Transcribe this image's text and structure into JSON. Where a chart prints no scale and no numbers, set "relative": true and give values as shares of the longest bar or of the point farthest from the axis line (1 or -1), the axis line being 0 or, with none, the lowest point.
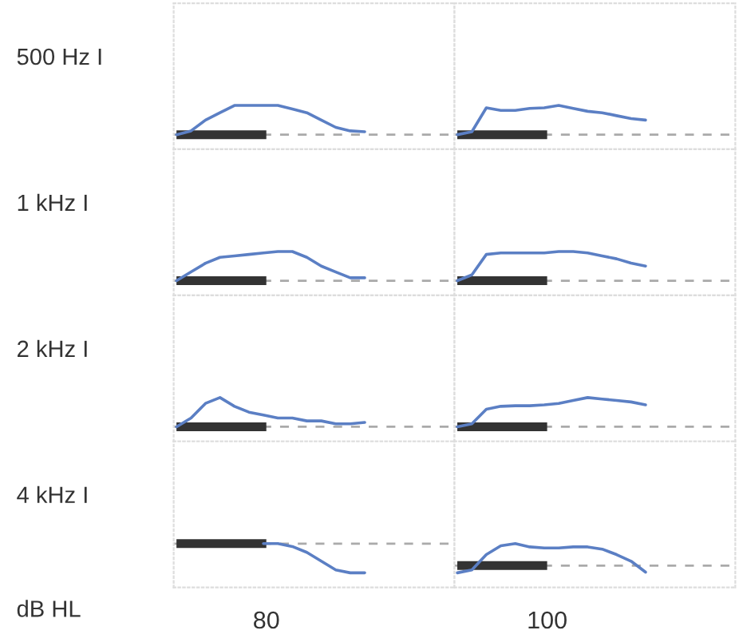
{
  "chart_data": [
    {
      "type": "line",
      "ylabel": "500 Hz I",
      "relative": true,
      "categories": [
        null,
        null,
        null,
        null,
        null,
        null,
        null,
        null,
        null,
        null,
        null,
        null,
        null,
        null,
        null,
        null,
        null,
        null,
        null,
        null
      ],
      "series": [
        {
          "color": "#5b7fc4",
          "values": [
            0,
            0.13,
            0.5,
            0.75,
            1,
            1,
            1,
            1,
            0.88,
            0.75,
            0.5,
            0.25,
            0.13,
            0.1,
            null,
            null,
            null,
            null,
            null,
            null
          ]
        }
      ],
      "ref_lines": [
        {
          "axis": "y",
          "value": 0,
          "color": "#aaaaaa",
          "line_style": "dashed"
        }
      ]
    },
    {
      "type": "line",
      "relative": true,
      "categories": [
        null,
        null,
        null,
        null,
        null,
        null,
        null,
        null,
        null,
        null,
        null,
        null,
        null,
        null,
        null,
        null,
        null,
        null,
        null,
        null
      ],
      "series": [
        {
          "color": "#5b7fc4",
          "values": [
            0,
            0.1,
            0.92,
            0.83,
            0.83,
            0.9,
            0.92,
            1,
            0.9,
            0.8,
            0.75,
            0.65,
            0.55,
            0.5,
            null,
            null,
            null,
            null,
            null,
            null
          ]
        }
      ],
      "ref_lines": [
        {
          "axis": "y",
          "value": 0,
          "color": "#aaaaaa",
          "line_style": "dashed"
        }
      ]
    },
    {
      "type": "line",
      "ylabel": "1 kHz I",
      "relative": true,
      "categories": [
        null,
        null,
        null,
        null,
        null,
        null,
        null,
        null,
        null,
        null,
        null,
        null,
        null,
        null,
        null,
        null,
        null,
        null,
        null,
        null
      ],
      "series": [
        {
          "color": "#5b7fc4",
          "values": [
            0,
            0.3,
            0.6,
            0.8,
            0.85,
            0.9,
            0.95,
            1,
            1,
            0.8,
            0.5,
            0.3,
            0.1,
            0.1,
            null,
            null,
            null,
            null,
            null,
            null
          ]
        }
      ],
      "ref_lines": [
        {
          "axis": "y",
          "value": 0,
          "color": "#aaaaaa",
          "line_style": "dashed"
        }
      ]
    },
    {
      "type": "line",
      "relative": true,
      "categories": [
        null,
        null,
        null,
        null,
        null,
        null,
        null,
        null,
        null,
        null,
        null,
        null,
        null,
        null,
        null,
        null,
        null,
        null,
        null,
        null
      ],
      "series": [
        {
          "color": "#5b7fc4",
          "values": [
            0,
            0.2,
            0.9,
            0.95,
            0.95,
            0.95,
            0.95,
            1,
            1,
            0.95,
            0.85,
            0.75,
            0.6,
            0.5,
            null,
            null,
            null,
            null,
            null,
            null
          ]
        }
      ],
      "ref_lines": [
        {
          "axis": "y",
          "value": 0,
          "color": "#aaaaaa",
          "line_style": "dashed"
        }
      ]
    },
    {
      "type": "line",
      "ylabel": "2 kHz I",
      "relative": true,
      "categories": [
        null,
        null,
        null,
        null,
        null,
        null,
        null,
        null,
        null,
        null,
        null,
        null,
        null,
        null,
        null,
        null,
        null,
        null,
        null,
        null
      ],
      "series": [
        {
          "color": "#5b7fc4",
          "values": [
            0,
            0.3,
            0.8,
            1,
            0.7,
            0.5,
            0.4,
            0.3,
            0.3,
            0.2,
            0.2,
            0.1,
            0.1,
            0.15,
            null,
            null,
            null,
            null,
            null,
            null
          ]
        }
      ],
      "ref_lines": [
        {
          "axis": "y",
          "value": 0,
          "color": "#aaaaaa",
          "line_style": "dashed"
        }
      ]
    },
    {
      "type": "line",
      "relative": true,
      "categories": [
        null,
        null,
        null,
        null,
        null,
        null,
        null,
        null,
        null,
        null,
        null,
        null,
        null,
        null,
        null,
        null,
        null,
        null,
        null,
        null
      ],
      "series": [
        {
          "color": "#5b7fc4",
          "values": [
            0,
            0.1,
            0.6,
            0.7,
            0.72,
            0.72,
            0.75,
            0.8,
            0.9,
            1,
            0.95,
            0.9,
            0.85,
            0.75,
            null,
            null,
            null,
            null,
            null,
            null
          ]
        }
      ],
      "ref_lines": [
        {
          "axis": "y",
          "value": 0,
          "color": "#aaaaaa",
          "line_style": "dashed"
        }
      ]
    },
    {
      "type": "line",
      "ylabel": "4 kHz I",
      "xlabel": "80",
      "annotations": [
        "dB HL"
      ],
      "relative": true,
      "categories": [
        null,
        null,
        null,
        null,
        null,
        null,
        null,
        null,
        null,
        null,
        null,
        null,
        null,
        null,
        null,
        null,
        null,
        null,
        null,
        null
      ],
      "series": [
        {
          "color": "#5b7fc4",
          "values": [
            null,
            null,
            null,
            null,
            null,
            null,
            0,
            0,
            -0.1,
            -0.3,
            -0.6,
            -0.9,
            -1,
            -1,
            null,
            null,
            null,
            null,
            null,
            null
          ]
        }
      ],
      "ref_lines": [
        {
          "axis": "y",
          "value": 0,
          "color": "#aaaaaa",
          "line_style": "dashed"
        }
      ]
    },
    {
      "type": "line",
      "xlabel": "100",
      "relative": true,
      "categories": [
        null,
        null,
        null,
        null,
        null,
        null,
        null,
        null,
        null,
        null,
        null,
        null,
        null,
        null,
        null,
        null,
        null,
        null,
        null,
        null
      ],
      "series": [
        {
          "color": "#5b7fc4",
          "values": [
            -0.33,
            -0.2,
            0.5,
            0.9,
            1,
            0.85,
            0.8,
            0.8,
            0.85,
            0.85,
            0.75,
            0.5,
            0.2,
            -0.3,
            null,
            null,
            null,
            null,
            null,
            null
          ]
        }
      ],
      "ref_lines": [
        {
          "axis": "y",
          "value": 0,
          "color": "#aaaaaa",
          "line_style": "dashed"
        }
      ]
    }
  ]
}
